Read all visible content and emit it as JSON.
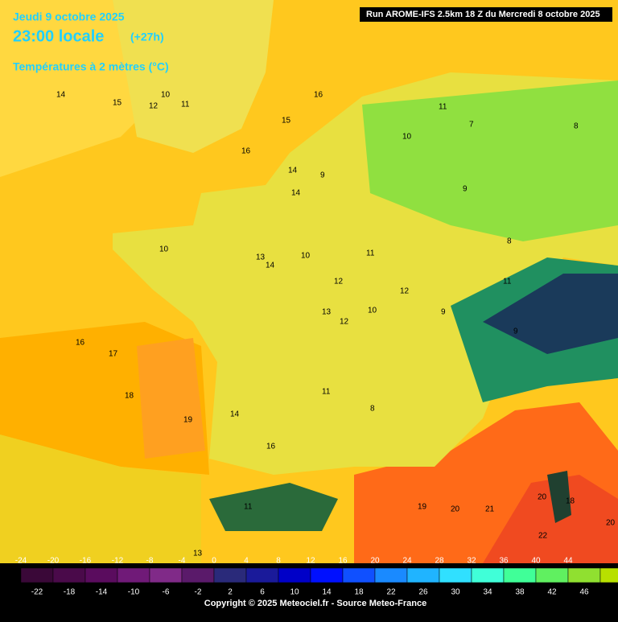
{
  "header": {
    "date": "Jeudi 9 octobre 2025",
    "time": "23:00 locale",
    "offset": "(+27h)",
    "parameter": "Températures à 2 mètres (°C)",
    "run": "Run AROME-IFS 2.5km 18 Z du Mercredi 8 octobre 2025"
  },
  "map_labels": [
    "14",
    "15",
    "12",
    "10",
    "11",
    "16",
    "15",
    "16",
    "13",
    "14",
    "9",
    "10",
    "11",
    "7",
    "8",
    "11",
    "10",
    "9",
    "8",
    "14",
    "10",
    "12",
    "13",
    "10",
    "11",
    "9",
    "16",
    "17",
    "18",
    "19",
    "14",
    "16",
    "13",
    "12",
    "11",
    "19",
    "20",
    "21",
    "22",
    "20",
    "18",
    "20",
    "11",
    "14",
    "9",
    "8",
    "12"
  ],
  "scale": {
    "top_labels": [
      -24,
      -20,
      -16,
      -12,
      -8,
      -4,
      0,
      4,
      8,
      12,
      16,
      20,
      24,
      28,
      32,
      36,
      40,
      44
    ],
    "bottom_labels": [
      -22,
      -18,
      -14,
      -10,
      -6,
      -2,
      2,
      6,
      10,
      14,
      18,
      22,
      26,
      30,
      34,
      38,
      42,
      46
    ],
    "colors": [
      "#3a0838",
      "#4a0a4a",
      "#5a0c5e",
      "#701a78",
      "#802a88",
      "#5a1a6a",
      "#2a2a7a",
      "#1a1a9a",
      "#0000c8",
      "#0010ff",
      "#1050ff",
      "#1a8aff",
      "#20b4ff",
      "#30e0ff",
      "#40ffd8",
      "#40ff98",
      "#60f060",
      "#90e030",
      "#b8e000",
      "#d8f000",
      "#ffff50",
      "#fff090",
      "#ffe070",
      "#ffd040",
      "#ffb820",
      "#ff9a10",
      "#ff7a10",
      "#ff5a10",
      "#ff2a00",
      "#e00000",
      "#c00000",
      "#a00010",
      "#7a0030",
      "#900080",
      "#c000c0",
      "#ff40ff"
    ]
  },
  "footer": {
    "copyright": "Copyright © 2025 Meteociel.fr - Source Meteo-France"
  }
}
